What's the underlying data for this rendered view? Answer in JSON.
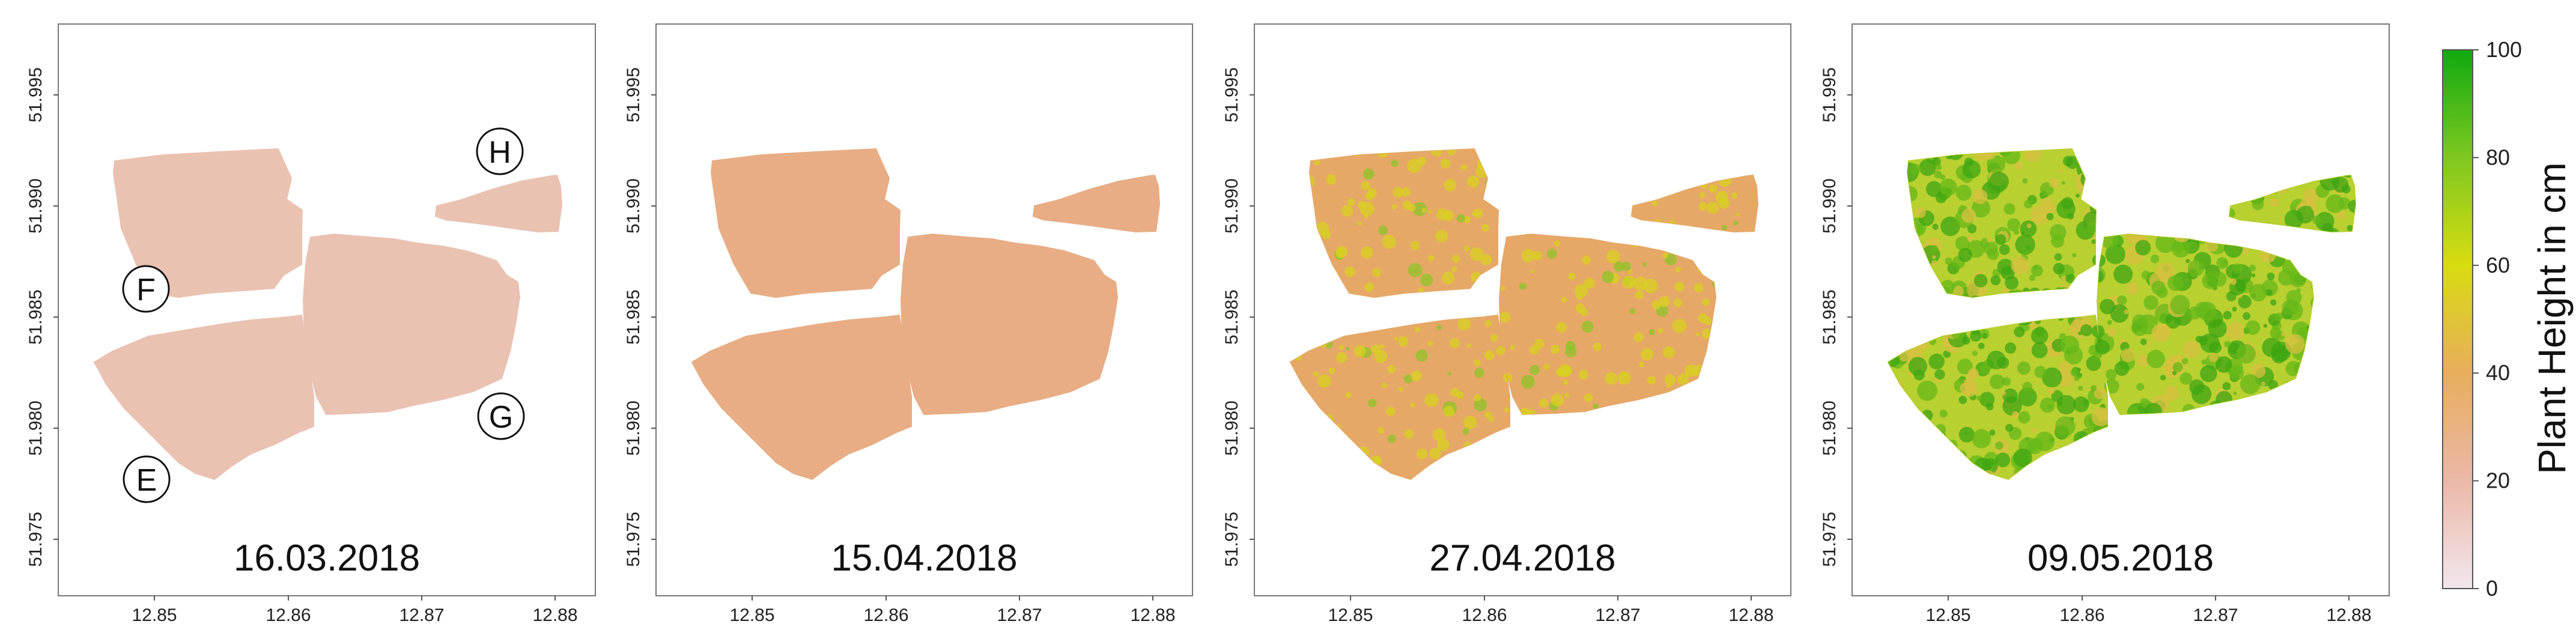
{
  "panels": [
    {
      "date": "16.03.2018",
      "labels": [
        {
          "text": "F"
        },
        {
          "text": "H"
        },
        {
          "text": "G"
        },
        {
          "text": "E"
        }
      ]
    },
    {
      "date": "15.04.2018",
      "labels": []
    },
    {
      "date": "27.04.2018",
      "labels": []
    },
    {
      "date": "09.05.2018",
      "labels": []
    }
  ],
  "axes": {
    "x_ticks": [
      "12.85",
      "12.86",
      "12.87",
      "12.88"
    ],
    "y_ticks": [
      "51.995",
      "51.990",
      "51.985",
      "51.980",
      "51.975"
    ]
  },
  "colorbar": {
    "title": "Plant Height in cm",
    "ticks": [
      "100",
      "80",
      "60",
      "40",
      "20",
      "0"
    ],
    "colors": [
      "#f2e6ec",
      "#ecb8a8",
      "#e8ad5c",
      "#d8dc10",
      "#7ec820",
      "#10aa10"
    ],
    "range": [
      0,
      100
    ]
  },
  "field_colors": {
    "p1": "#eac2b2",
    "p2": "#e8ad84",
    "p3": "#e6a866",
    "p4": "#b8d030",
    "speckle_p3": "#d8d020",
    "speckle_p4": "#66b818"
  }
}
